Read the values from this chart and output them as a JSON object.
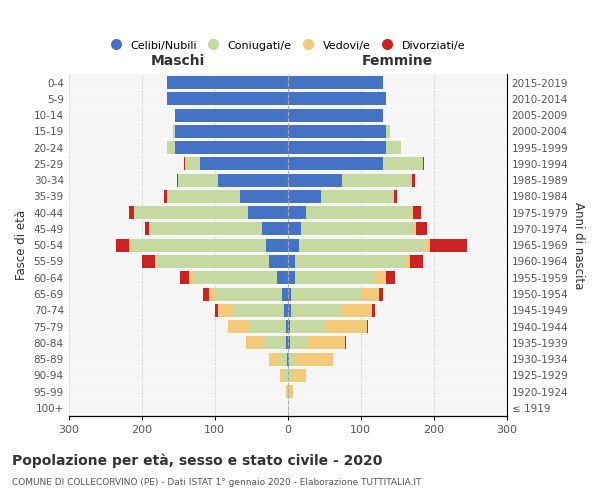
{
  "age_groups": [
    "100+",
    "95-99",
    "90-94",
    "85-89",
    "80-84",
    "75-79",
    "70-74",
    "65-69",
    "60-64",
    "55-59",
    "50-54",
    "45-49",
    "40-44",
    "35-39",
    "30-34",
    "25-29",
    "20-24",
    "15-19",
    "10-14",
    "5-9",
    "0-4"
  ],
  "birth_years": [
    "≤ 1919",
    "1920-1924",
    "1925-1929",
    "1930-1934",
    "1935-1939",
    "1940-1944",
    "1945-1949",
    "1950-1954",
    "1955-1959",
    "1960-1964",
    "1965-1969",
    "1970-1974",
    "1975-1979",
    "1980-1984",
    "1985-1989",
    "1990-1994",
    "1995-1999",
    "2000-2004",
    "2005-2009",
    "2010-2014",
    "2015-2019"
  ],
  "male": {
    "celibi": [
      0,
      0,
      0,
      1,
      2,
      2,
      5,
      8,
      15,
      25,
      30,
      35,
      55,
      65,
      95,
      120,
      155,
      155,
      155,
      165,
      165
    ],
    "coniugati": [
      0,
      1,
      5,
      10,
      30,
      50,
      70,
      90,
      115,
      155,
      185,
      155,
      155,
      100,
      55,
      20,
      10,
      2,
      0,
      0,
      0
    ],
    "vedovi": [
      0,
      1,
      5,
      15,
      25,
      30,
      20,
      10,
      5,
      2,
      2,
      0,
      0,
      0,
      0,
      0,
      0,
      0,
      0,
      0,
      0
    ],
    "divorziati": [
      0,
      0,
      0,
      0,
      0,
      0,
      5,
      8,
      12,
      18,
      18,
      5,
      8,
      5,
      2,
      2,
      0,
      0,
      0,
      0,
      0
    ]
  },
  "female": {
    "nubili": [
      0,
      0,
      0,
      2,
      3,
      3,
      5,
      5,
      10,
      10,
      15,
      18,
      25,
      45,
      75,
      130,
      135,
      135,
      130,
      135,
      130
    ],
    "coniugate": [
      0,
      2,
      5,
      10,
      25,
      50,
      70,
      95,
      110,
      150,
      175,
      155,
      145,
      100,
      95,
      55,
      20,
      5,
      0,
      0,
      0
    ],
    "vedove": [
      1,
      5,
      20,
      50,
      50,
      55,
      40,
      25,
      15,
      8,
      5,
      3,
      2,
      0,
      0,
      0,
      0,
      0,
      0,
      0,
      0
    ],
    "divorziate": [
      0,
      0,
      0,
      0,
      2,
      2,
      5,
      5,
      12,
      18,
      50,
      15,
      10,
      5,
      5,
      2,
      0,
      0,
      0,
      0,
      0
    ]
  },
  "colors": {
    "celibi": "#4472C4",
    "coniugati": "#C5D9A0",
    "vedovi": "#F5C97A",
    "divorziati": "#CC2222"
  },
  "title": "Popolazione per età, sesso e stato civile - 2020",
  "subtitle": "COMUNE DI COLLECORVINO (PE) - Dati ISTAT 1° gennaio 2020 - Elaborazione TUTTITALIA.IT",
  "xlabel_left": "Maschi",
  "xlabel_right": "Femmine",
  "ylabel_left": "Fasce di età",
  "ylabel_right": "Anni di nascita",
  "xlim": 300,
  "legend_labels": [
    "Celibi/Nubili",
    "Coniugati/e",
    "Vedovi/e",
    "Divorziati/e"
  ],
  "bg_color": "#f5f5f5"
}
